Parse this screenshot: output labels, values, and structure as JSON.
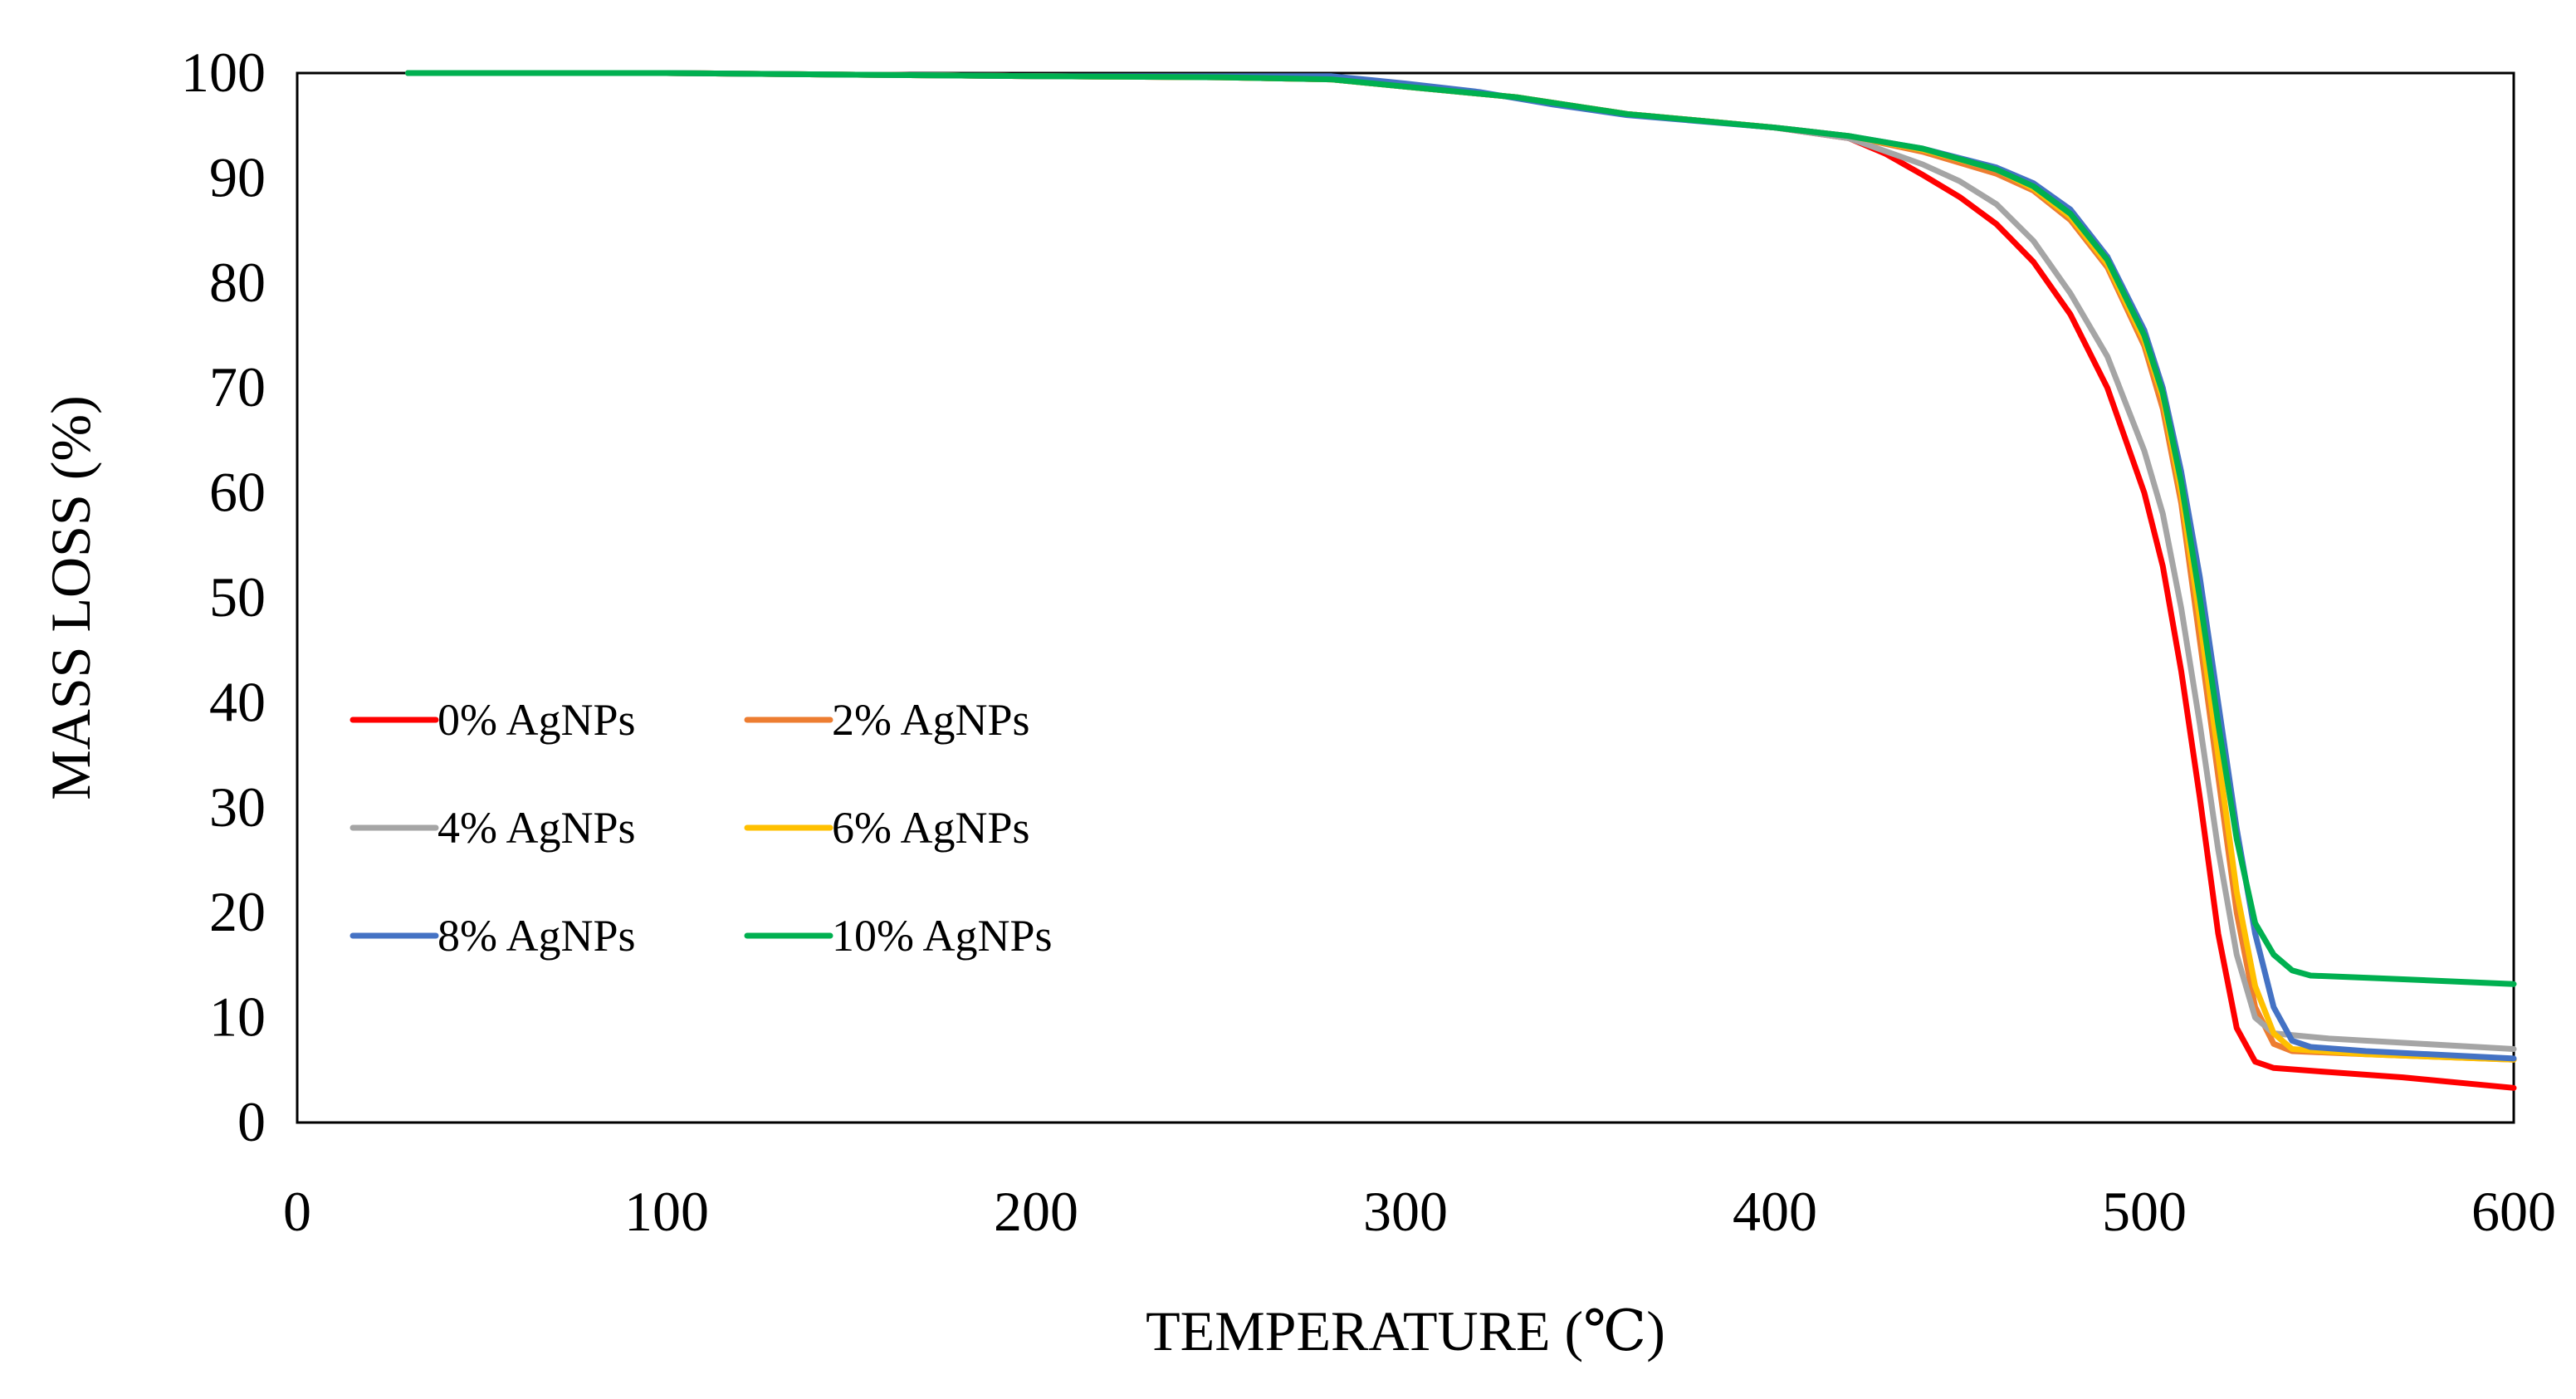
{
  "chart_data": {
    "type": "line",
    "title": "",
    "xlabel": "TEMPERATURE (℃)",
    "ylabel": "MASS LOSS (%)",
    "xlim": [
      0,
      600
    ],
    "ylim": [
      0,
      100
    ],
    "xticks": [
      0,
      100,
      200,
      300,
      400,
      500,
      600
    ],
    "yticks": [
      0,
      10,
      20,
      30,
      40,
      50,
      60,
      70,
      80,
      90,
      100
    ],
    "grid": false,
    "legend": "lower-left",
    "series": [
      {
        "name": "0% AgNPs",
        "color": "#ff0000",
        "points": [
          [
            30,
            100
          ],
          [
            100,
            100
          ],
          [
            200,
            99.7
          ],
          [
            250,
            99.6
          ],
          [
            280,
            99.4
          ],
          [
            300,
            98.7
          ],
          [
            330,
            97.7
          ],
          [
            360,
            96.1
          ],
          [
            400,
            94.8
          ],
          [
            420,
            93.8
          ],
          [
            430,
            92.3
          ],
          [
            440,
            90.3
          ],
          [
            450,
            88.2
          ],
          [
            460,
            85.6
          ],
          [
            470,
            82.0
          ],
          [
            480,
            77.0
          ],
          [
            490,
            70.0
          ],
          [
            500,
            60.0
          ],
          [
            505,
            53.0
          ],
          [
            510,
            43.0
          ],
          [
            515,
            31.0
          ],
          [
            520,
            18.0
          ],
          [
            525,
            9.0
          ],
          [
            530,
            5.8
          ],
          [
            535,
            5.2
          ],
          [
            550,
            4.8
          ],
          [
            570,
            4.3
          ],
          [
            600,
            3.3
          ]
        ]
      },
      {
        "name": "2% AgNPs",
        "color": "#ed7d31",
        "points": [
          [
            30,
            100
          ],
          [
            100,
            100
          ],
          [
            200,
            99.7
          ],
          [
            250,
            99.6
          ],
          [
            280,
            99.4
          ],
          [
            300,
            98.7
          ],
          [
            330,
            97.7
          ],
          [
            360,
            96.1
          ],
          [
            400,
            94.8
          ],
          [
            420,
            94.0
          ],
          [
            440,
            92.5
          ],
          [
            460,
            90.4
          ],
          [
            470,
            88.8
          ],
          [
            480,
            86.0
          ],
          [
            490,
            81.5
          ],
          [
            500,
            74.0
          ],
          [
            505,
            68.0
          ],
          [
            510,
            59.0
          ],
          [
            515,
            46.0
          ],
          [
            520,
            33.0
          ],
          [
            525,
            20.0
          ],
          [
            530,
            11.0
          ],
          [
            535,
            7.5
          ],
          [
            540,
            6.8
          ],
          [
            560,
            6.5
          ],
          [
            600,
            6.0
          ]
        ]
      },
      {
        "name": "4% AgNPs",
        "color": "#a5a5a5",
        "points": [
          [
            30,
            100
          ],
          [
            100,
            100
          ],
          [
            200,
            99.7
          ],
          [
            250,
            99.6
          ],
          [
            280,
            99.4
          ],
          [
            300,
            98.7
          ],
          [
            330,
            97.7
          ],
          [
            360,
            96.1
          ],
          [
            400,
            94.8
          ],
          [
            420,
            93.8
          ],
          [
            440,
            91.3
          ],
          [
            450,
            89.7
          ],
          [
            460,
            87.5
          ],
          [
            470,
            84.0
          ],
          [
            480,
            79.0
          ],
          [
            490,
            73.0
          ],
          [
            500,
            64.0
          ],
          [
            505,
            58.0
          ],
          [
            510,
            49.0
          ],
          [
            515,
            38.0
          ],
          [
            520,
            26.0
          ],
          [
            525,
            16.0
          ],
          [
            530,
            10.0
          ],
          [
            535,
            8.5
          ],
          [
            550,
            8.0
          ],
          [
            600,
            7.0
          ]
        ]
      },
      {
        "name": "6% AgNPs",
        "color": "#ffc000",
        "points": [
          [
            30,
            100
          ],
          [
            100,
            100
          ],
          [
            200,
            99.7
          ],
          [
            250,
            99.6
          ],
          [
            280,
            99.4
          ],
          [
            300,
            98.7
          ],
          [
            330,
            97.7
          ],
          [
            360,
            96.1
          ],
          [
            400,
            94.8
          ],
          [
            420,
            94.0
          ],
          [
            440,
            92.7
          ],
          [
            460,
            90.8
          ],
          [
            470,
            89.0
          ],
          [
            480,
            86.3
          ],
          [
            490,
            81.8
          ],
          [
            500,
            74.5
          ],
          [
            505,
            69.0
          ],
          [
            510,
            60.0
          ],
          [
            515,
            48.0
          ],
          [
            520,
            35.0
          ],
          [
            525,
            22.0
          ],
          [
            530,
            13.0
          ],
          [
            535,
            8.5
          ],
          [
            540,
            7.0
          ],
          [
            560,
            6.5
          ],
          [
            600,
            6.0
          ]
        ]
      },
      {
        "name": "8% AgNPs",
        "color": "#4472c4",
        "points": [
          [
            30,
            100
          ],
          [
            100,
            100
          ],
          [
            200,
            99.7
          ],
          [
            250,
            99.7
          ],
          [
            280,
            99.7
          ],
          [
            300,
            99.0
          ],
          [
            320,
            98.2
          ],
          [
            340,
            97.0
          ],
          [
            360,
            96.0
          ],
          [
            400,
            94.8
          ],
          [
            420,
            94.0
          ],
          [
            440,
            92.8
          ],
          [
            460,
            91.0
          ],
          [
            470,
            89.5
          ],
          [
            480,
            87.0
          ],
          [
            490,
            82.5
          ],
          [
            500,
            75.5
          ],
          [
            505,
            70.0
          ],
          [
            510,
            62.0
          ],
          [
            515,
            52.0
          ],
          [
            520,
            40.0
          ],
          [
            525,
            28.0
          ],
          [
            530,
            18.0
          ],
          [
            535,
            11.0
          ],
          [
            540,
            7.8
          ],
          [
            545,
            7.2
          ],
          [
            560,
            6.8
          ],
          [
            600,
            6.1
          ]
        ]
      },
      {
        "name": "10% AgNPs",
        "color": "#00b050",
        "points": [
          [
            30,
            100
          ],
          [
            100,
            100
          ],
          [
            200,
            99.7
          ],
          [
            250,
            99.6
          ],
          [
            280,
            99.4
          ],
          [
            300,
            98.7
          ],
          [
            330,
            97.7
          ],
          [
            360,
            96.1
          ],
          [
            400,
            94.8
          ],
          [
            420,
            94.0
          ],
          [
            440,
            92.8
          ],
          [
            460,
            90.8
          ],
          [
            470,
            89.2
          ],
          [
            480,
            86.6
          ],
          [
            490,
            82.2
          ],
          [
            500,
            75.0
          ],
          [
            505,
            69.5
          ],
          [
            510,
            61.0
          ],
          [
            515,
            50.0
          ],
          [
            520,
            38.0
          ],
          [
            525,
            27.0
          ],
          [
            530,
            19.0
          ],
          [
            535,
            16.0
          ],
          [
            540,
            14.5
          ],
          [
            545,
            14.0
          ],
          [
            560,
            13.8
          ],
          [
            600,
            13.2
          ]
        ]
      }
    ]
  }
}
